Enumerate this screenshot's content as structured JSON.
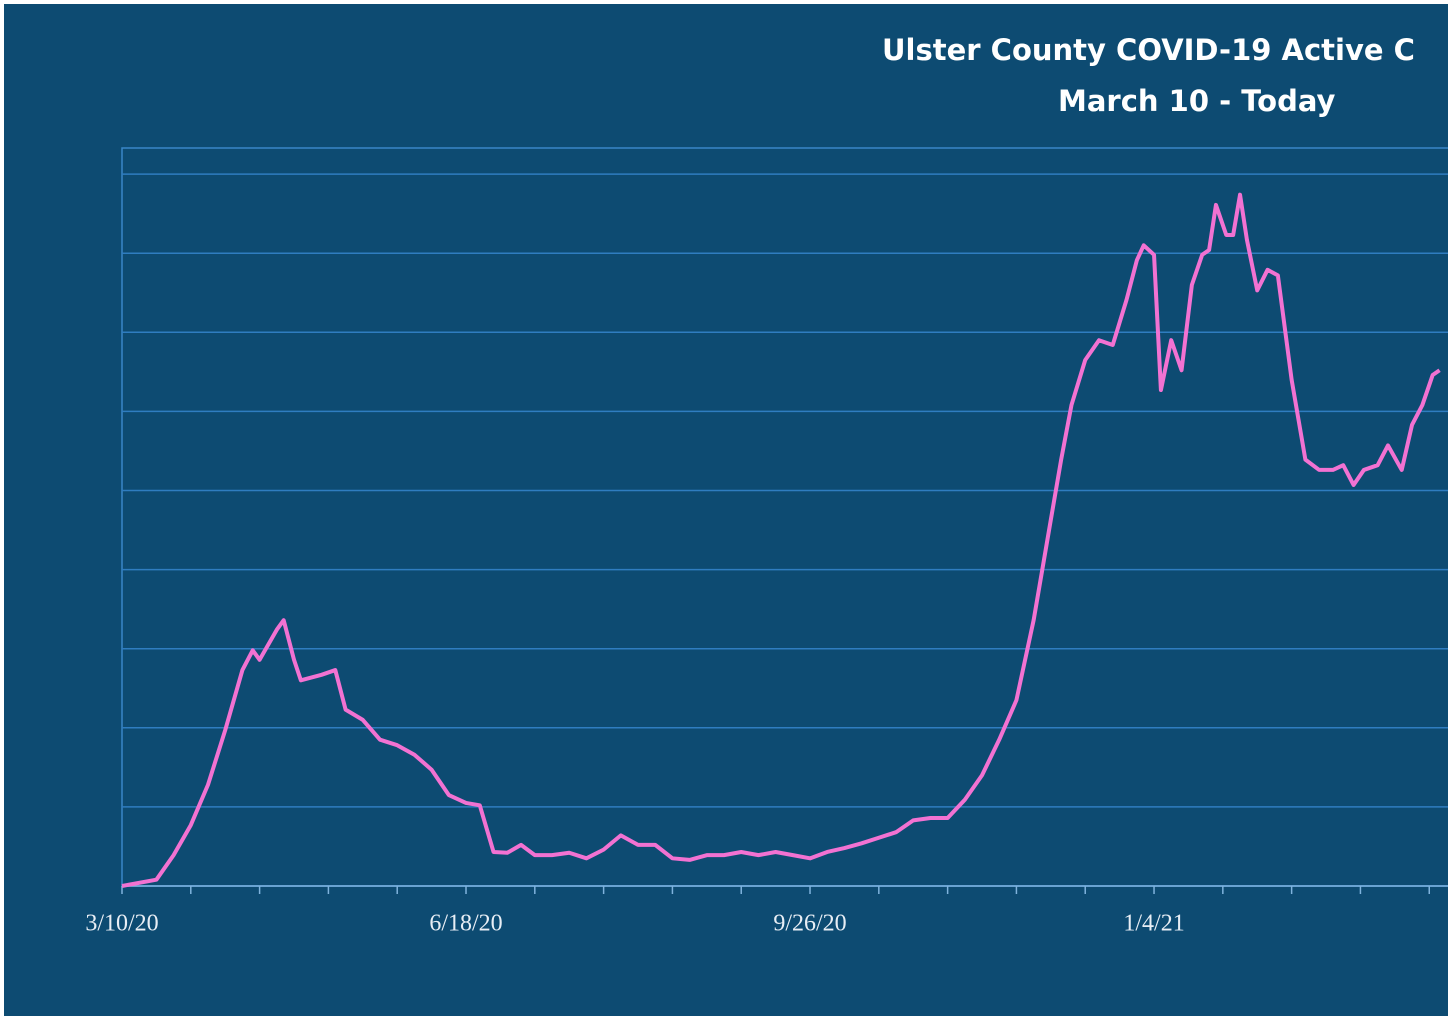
{
  "chart_data": {
    "type": "line",
    "title": "Ulster County COVID-19 Active C",
    "subtitle": "March  10 - Today",
    "x": [
      0,
      10,
      15,
      20,
      25,
      30,
      35,
      38,
      40,
      45,
      47,
      50,
      52,
      58,
      62,
      65,
      70,
      75,
      80,
      85,
      90,
      95,
      100,
      104,
      108,
      112,
      116,
      120,
      125,
      130,
      135,
      140,
      145,
      150,
      155,
      160,
      165,
      170,
      175,
      180,
      185,
      190,
      195,
      200,
      205,
      210,
      215,
      220,
      225,
      230,
      235,
      240,
      245,
      250,
      255,
      260,
      265,
      270,
      273,
      276,
      280,
      284,
      288,
      292,
      295,
      297,
      300,
      302,
      305,
      308,
      311,
      314,
      316,
      318,
      321,
      323,
      325,
      327,
      330,
      333,
      336,
      340,
      344,
      348,
      352,
      355,
      358,
      361,
      365,
      368,
      372,
      375,
      378,
      381,
      383
    ],
    "series": [
      {
        "color": "#f272d2",
        "values": [
          0,
          0.08,
          0.39,
          0.77,
          1.28,
          1.97,
          2.73,
          2.98,
          2.86,
          3.24,
          3.36,
          2.86,
          2.6,
          2.67,
          2.73,
          2.23,
          2.1,
          1.85,
          1.78,
          1.66,
          1.47,
          1.15,
          1.05,
          1.02,
          0.43,
          0.42,
          0.52,
          0.39,
          0.39,
          0.42,
          0.35,
          0.46,
          0.64,
          0.52,
          0.52,
          0.35,
          0.33,
          0.39,
          0.39,
          0.43,
          0.39,
          0.43,
          0.39,
          0.35,
          0.43,
          0.48,
          0.54,
          0.61,
          0.68,
          0.83,
          0.86,
          0.86,
          1.09,
          1.4,
          1.85,
          2.35,
          3.36,
          4.63,
          5.39,
          6.08,
          6.65,
          6.9,
          6.84,
          7.41,
          7.91,
          8.1,
          7.98,
          6.27,
          6.9,
          6.52,
          7.6,
          7.98,
          8.04,
          8.61,
          8.23,
          8.23,
          8.74,
          8.17,
          7.53,
          7.79,
          7.72,
          6.4,
          5.39,
          5.26,
          5.26,
          5.32,
          5.07,
          5.26,
          5.32,
          5.57,
          5.26,
          5.83,
          6.08,
          6.46,
          6.52
        ]
      }
    ],
    "xlim": [
      0,
      384
    ],
    "xticks": [
      {
        "value": 0,
        "label": "3/10/20"
      },
      {
        "value": 100,
        "label": "6/18/20"
      },
      {
        "value": 200,
        "label": "9/26/20"
      },
      {
        "value": 300,
        "label": "1/4/21"
      }
    ],
    "xminor_ticks": [
      20,
      40,
      60,
      80,
      120,
      140,
      160,
      180,
      220,
      240,
      260,
      280,
      320,
      340,
      360,
      380
    ],
    "ylim": [
      0,
      9.33
    ],
    "yticks": [
      0,
      1,
      2,
      3,
      4,
      5,
      6,
      7,
      8,
      9
    ],
    "grid": true
  }
}
